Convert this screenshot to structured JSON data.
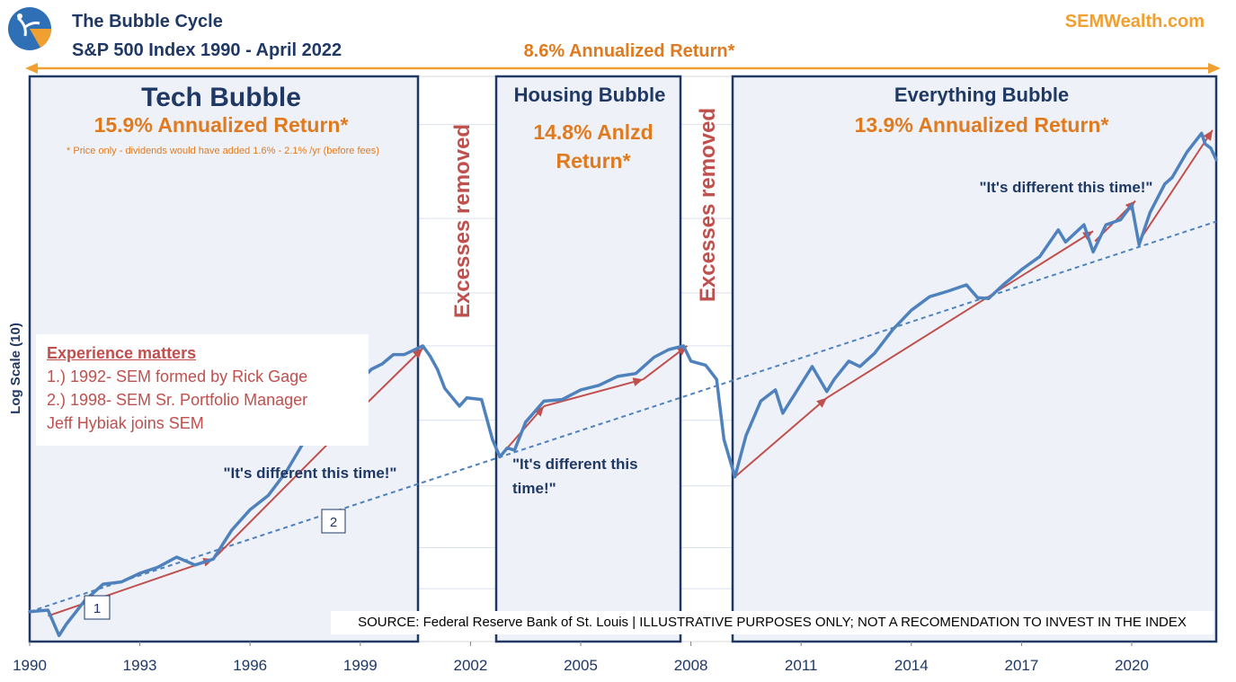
{
  "header": {
    "title_line1": "The Bubble Cycle",
    "title_line2": "S&P 500 Index 1990  - April 2022",
    "brand": "SEMWealth.com",
    "overall_return": "8.6% Annualized Return*"
  },
  "colors": {
    "navy": "#1f3864",
    "orange": "#e07a1f",
    "red": "#c0504d",
    "line": "#4f81bd",
    "region_fill": "#eef2f8",
    "brand": "#f0a030"
  },
  "regions": {
    "tech": {
      "title": "Tech Bubble",
      "return": "15.9% Annualized Return*",
      "footnote": "* Price only - dividends would have added 1.6%  - 2.1% /yr (before fees)",
      "quote": "\"It's different this time!\""
    },
    "excess1": "Excesses removed",
    "housing": {
      "title": "Housing Bubble",
      "return_line1": "14.8% Anlzd",
      "return_line2": "Return*",
      "quote_line1": "\"It's different this",
      "quote_line2": "time!\""
    },
    "excess2": "Excesses removed",
    "everything": {
      "title": "Everything Bubble",
      "return": "13.9% Annualized Return*",
      "quote": "\"It's different this time!\""
    }
  },
  "experience": {
    "heading": "Experience matters",
    "line1": "1.) 1992- SEM formed by Rick Gage",
    "line2": "2.) 1998- SEM Sr. Portfolio Manager",
    "line3": "Jeff Hybiak joins SEM"
  },
  "markers": {
    "m1": "1",
    "m2": "2"
  },
  "source": "SOURCE: Federal Reserve Bank of St. Louis | ILLUSTRATIVE PURPOSES ONLY; NOT A RECOMENDATION TO INVEST IN THE INDEX",
  "chart_data": {
    "type": "line",
    "title": "The Bubble Cycle",
    "subtitle": "S&P 500 Index 1990  - April 2022",
    "xlabel": "",
    "ylabel": "Log Scale (10)",
    "y_scale": "log",
    "xlim": [
      1990,
      2022.3
    ],
    "ylim": [
      300,
      6500
    ],
    "grid": true,
    "x_ticks": [
      1990,
      1993,
      1996,
      1999,
      2002,
      2005,
      2008,
      2011,
      2014,
      2017,
      2020
    ],
    "x_tick_labels": [
      "1990",
      "1993",
      "1996",
      "1999",
      "2002",
      "2005",
      "2008",
      "2011",
      "2014",
      "2017",
      "2020"
    ],
    "series": [
      {
        "values": [
          [
            1990.0,
            353
          ],
          [
            1990.5,
            356
          ],
          [
            1990.8,
            310
          ],
          [
            1991.0,
            330
          ],
          [
            1991.5,
            375
          ],
          [
            1992.0,
            410
          ],
          [
            1992.5,
            415
          ],
          [
            1993.0,
            435
          ],
          [
            1993.5,
            450
          ],
          [
            1994.0,
            475
          ],
          [
            1994.5,
            455
          ],
          [
            1995.0,
            470
          ],
          [
            1995.5,
            550
          ],
          [
            1996.0,
            615
          ],
          [
            1996.5,
            665
          ],
          [
            1997.0,
            760
          ],
          [
            1997.5,
            900
          ],
          [
            1997.9,
            960
          ],
          [
            1998.3,
            1110
          ],
          [
            1998.6,
            1160
          ],
          [
            1998.8,
            980
          ],
          [
            1999.0,
            1240
          ],
          [
            1999.3,
            1320
          ],
          [
            1999.6,
            1360
          ],
          [
            1999.9,
            1430
          ],
          [
            2000.2,
            1430
          ],
          [
            2000.7,
            1500
          ],
          [
            2000.9,
            1420
          ],
          [
            2001.1,
            1320
          ],
          [
            2001.3,
            1190
          ],
          [
            2001.7,
            1080
          ],
          [
            2001.9,
            1130
          ],
          [
            2002.3,
            1120
          ],
          [
            2002.6,
            900
          ],
          [
            2002.8,
            820
          ],
          [
            2003.0,
            860
          ],
          [
            2003.2,
            850
          ],
          [
            2003.5,
            990
          ],
          [
            2004.0,
            1110
          ],
          [
            2004.5,
            1120
          ],
          [
            2005.0,
            1180
          ],
          [
            2005.5,
            1210
          ],
          [
            2006.0,
            1270
          ],
          [
            2006.5,
            1290
          ],
          [
            2007.0,
            1410
          ],
          [
            2007.4,
            1470
          ],
          [
            2007.8,
            1500
          ],
          [
            2008.0,
            1380
          ],
          [
            2008.4,
            1350
          ],
          [
            2008.7,
            1250
          ],
          [
            2008.9,
            900
          ],
          [
            2009.2,
            735
          ],
          [
            2009.5,
            920
          ],
          [
            2009.9,
            1110
          ],
          [
            2010.3,
            1180
          ],
          [
            2010.5,
            1040
          ],
          [
            2010.9,
            1180
          ],
          [
            2011.3,
            1340
          ],
          [
            2011.7,
            1170
          ],
          [
            2011.9,
            1250
          ],
          [
            2012.3,
            1380
          ],
          [
            2012.6,
            1340
          ],
          [
            2013.0,
            1440
          ],
          [
            2013.5,
            1640
          ],
          [
            2014.0,
            1820
          ],
          [
            2014.5,
            1960
          ],
          [
            2015.0,
            2020
          ],
          [
            2015.5,
            2090
          ],
          [
            2015.8,
            1950
          ],
          [
            2016.1,
            1940
          ],
          [
            2016.5,
            2090
          ],
          [
            2017.0,
            2270
          ],
          [
            2017.5,
            2440
          ],
          [
            2018.0,
            2820
          ],
          [
            2018.2,
            2640
          ],
          [
            2018.7,
            2900
          ],
          [
            2018.95,
            2500
          ],
          [
            2019.3,
            2900
          ],
          [
            2019.7,
            2980
          ],
          [
            2020.0,
            3230
          ],
          [
            2020.2,
            2600
          ],
          [
            2020.5,
            3100
          ],
          [
            2020.9,
            3620
          ],
          [
            2021.1,
            3750
          ],
          [
            2021.5,
            4300
          ],
          [
            2021.9,
            4770
          ],
          [
            2022.0,
            4500
          ],
          [
            2022.15,
            4400
          ],
          [
            2022.3,
            4130
          ]
        ]
      }
    ],
    "trend_line": {
      "start": [
        1990,
        353
      ],
      "end": [
        2022.3,
        2950
      ],
      "style": "dashed"
    },
    "arrows": [
      [
        [
          1990.5,
          345
        ],
        [
          1995.0,
          470
        ]
      ],
      [
        [
          1995.0,
          470
        ],
        [
          1998.5,
          950
        ]
      ],
      [
        [
          1998.6,
          980
        ],
        [
          2000.7,
          1480
        ]
      ],
      [
        [
          2003.0,
          860
        ],
        [
          2004.0,
          1080
        ]
      ],
      [
        [
          2004.0,
          1080
        ],
        [
          2006.7,
          1250
        ]
      ],
      [
        [
          2006.7,
          1250
        ],
        [
          2007.9,
          1500
        ]
      ],
      [
        [
          2009.2,
          735
        ],
        [
          2011.7,
          1130
        ]
      ],
      [
        [
          2011.7,
          1130
        ],
        [
          2018.95,
          2800
        ]
      ],
      [
        [
          2019.0,
          2650
        ],
        [
          2020.1,
          3300
        ]
      ],
      [
        [
          2020.2,
          2650
        ],
        [
          2022.2,
          4850
        ]
      ]
    ]
  }
}
